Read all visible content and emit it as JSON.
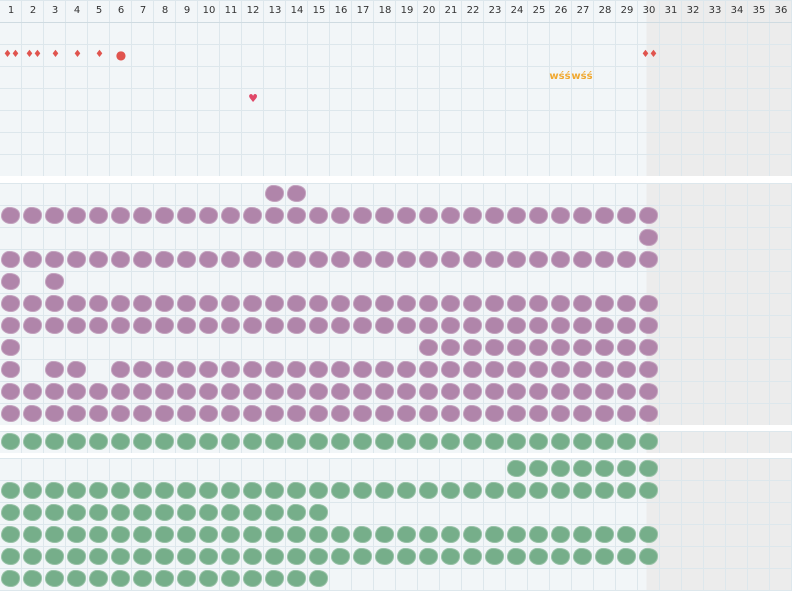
{
  "columns": [
    "1",
    "2",
    "3",
    "4",
    "5",
    "6",
    "7",
    "8",
    "9",
    "10",
    "11",
    "12",
    "13",
    "14",
    "15",
    "16",
    "17",
    "18",
    "19",
    "20",
    "21",
    "22",
    "23",
    "24",
    "25",
    "26",
    "27",
    "28",
    "29",
    "30",
    "31",
    "32",
    "33",
    "34",
    "35",
    "36"
  ],
  "colors": {
    "purple": "#b085aa",
    "green": "#76ae8a",
    "drop": "#e0544e",
    "heart": "#e04868",
    "wss": "#f0a830",
    "grid_line": "#dde7ec",
    "shade": "#ececec"
  },
  "top_symbols": [
    {
      "row": 1,
      "col": 1,
      "type": "drop",
      "text": "♦♦"
    },
    {
      "row": 1,
      "col": 2,
      "type": "drop",
      "text": "♦♦"
    },
    {
      "row": 1,
      "col": 3,
      "type": "drop",
      "text": "♦"
    },
    {
      "row": 1,
      "col": 4,
      "type": "drop",
      "text": "♦"
    },
    {
      "row": 1,
      "col": 5,
      "type": "drop",
      "text": "♦"
    },
    {
      "row": 1,
      "col": 6,
      "type": "dot",
      "text": "●"
    },
    {
      "row": 1,
      "col": 30,
      "type": "drop",
      "text": "♦♦"
    },
    {
      "row": 2,
      "col": 26,
      "type": "wss",
      "text": "wśś"
    },
    {
      "row": 2,
      "col": 27,
      "type": "wss",
      "text": "wśś"
    },
    {
      "row": 3,
      "col": 12,
      "type": "heart",
      "text": "♥"
    }
  ],
  "purple_rows": [
    {
      "row": 8,
      "ranges": [
        [
          13,
          14
        ]
      ]
    },
    {
      "row": 9,
      "ranges": [
        [
          1,
          30
        ]
      ]
    },
    {
      "row": 10,
      "ranges": [
        [
          30,
          30
        ]
      ]
    },
    {
      "row": 11,
      "ranges": [
        [
          1,
          30
        ]
      ]
    },
    {
      "row": 12,
      "ranges": [
        [
          1,
          1
        ],
        [
          3,
          3
        ]
      ]
    },
    {
      "row": 13,
      "ranges": [
        [
          1,
          30
        ]
      ]
    },
    {
      "row": 14,
      "ranges": [
        [
          1,
          30
        ]
      ]
    },
    {
      "row": 15,
      "ranges": [
        [
          1,
          1
        ],
        [
          20,
          30
        ]
      ]
    },
    {
      "row": 16,
      "ranges": [
        [
          1,
          1
        ],
        [
          3,
          4
        ],
        [
          6,
          30
        ]
      ]
    },
    {
      "row": 17,
      "ranges": [
        [
          1,
          30
        ]
      ]
    },
    {
      "row": 18,
      "ranges": [
        [
          1,
          30
        ]
      ]
    }
  ],
  "green_rows": [
    {
      "row": 19,
      "ranges": [
        [
          1,
          30
        ]
      ]
    },
    {
      "row": 20,
      "ranges": [
        [
          24,
          30
        ]
      ]
    },
    {
      "row": 21,
      "ranges": [
        [
          1,
          30
        ]
      ]
    },
    {
      "row": 22,
      "ranges": [
        [
          1,
          15
        ]
      ]
    },
    {
      "row": 23,
      "ranges": [
        [
          1,
          30
        ]
      ]
    },
    {
      "row": 24,
      "ranges": [
        [
          1,
          30
        ]
      ]
    },
    {
      "row": 25,
      "ranges": [
        [
          1,
          15
        ]
      ]
    }
  ]
}
